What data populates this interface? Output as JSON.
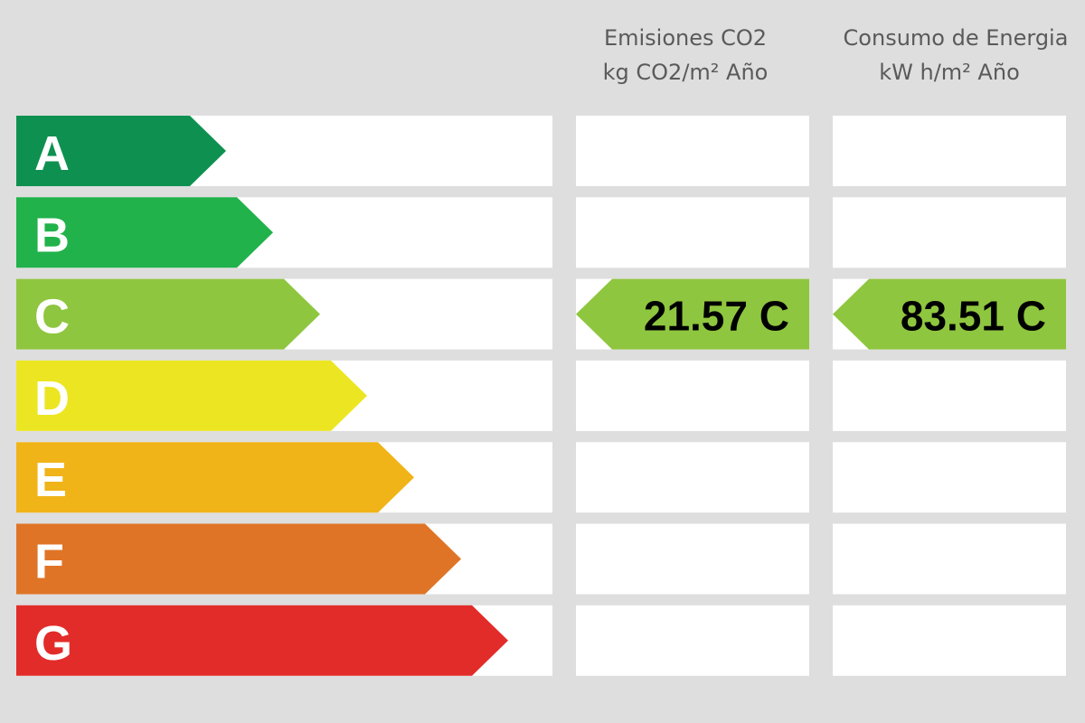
{
  "header": {
    "columns": [
      {
        "line1": "Emisiones CO2",
        "line2": "kg CO2/m² Año"
      },
      {
        "line1": "Consumo de Energia",
        "line2": "kW h/m² Año"
      }
    ]
  },
  "scale": [
    {
      "label": "A",
      "color": "#0e9150"
    },
    {
      "label": "B",
      "color": "#21b24b"
    },
    {
      "label": "C",
      "color": "#8fc63f"
    },
    {
      "label": "D",
      "color": "#ece622"
    },
    {
      "label": "E",
      "color": "#f0b418"
    },
    {
      "label": "F",
      "color": "#e07426"
    },
    {
      "label": "G",
      "color": "#e22c29"
    }
  ],
  "ratings": [
    {
      "value": 21.57,
      "class": "C"
    },
    {
      "value": 83.51,
      "class": "C"
    }
  ]
}
